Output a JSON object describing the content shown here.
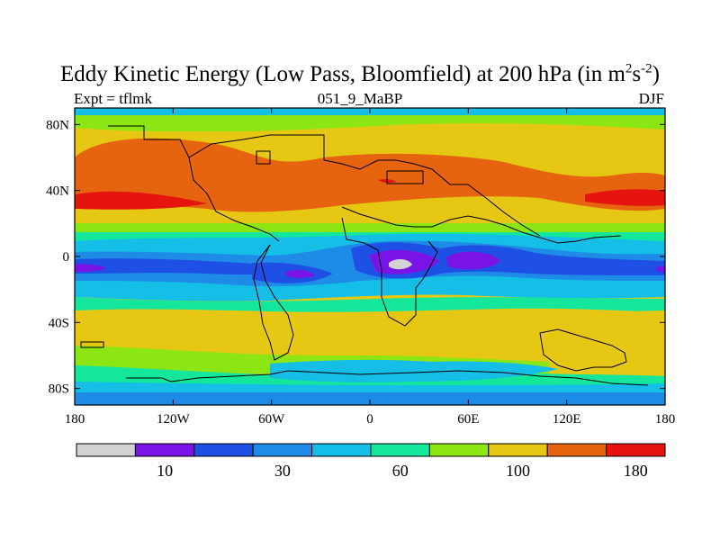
{
  "title": {
    "main": "Eddy Kinetic Energy (Low Pass, Bloomfield) at 200 hPa (in m",
    "sup1": "2",
    "mid": "s",
    "sup2": "-2",
    "end": ")"
  },
  "subtitle": {
    "left": "Expt = tflmk",
    "center": "051_9_MaBP",
    "right": "DJF"
  },
  "map": {
    "lon_range": [
      -180,
      180
    ],
    "lat_range": [
      -90,
      90
    ],
    "x_ticks": [
      {
        "value": -180,
        "label": "180"
      },
      {
        "value": -120,
        "label": "120W"
      },
      {
        "value": -60,
        "label": "60W"
      },
      {
        "value": 0,
        "label": "0"
      },
      {
        "value": 60,
        "label": "60E"
      },
      {
        "value": 120,
        "label": "120E"
      },
      {
        "value": 180,
        "label": "180"
      }
    ],
    "y_ticks": [
      {
        "value": 80,
        "label": "80N"
      },
      {
        "value": 40,
        "label": "40N"
      },
      {
        "value": 0,
        "label": "0"
      },
      {
        "value": -40,
        "label": "40S"
      },
      {
        "value": -80,
        "label": "80S"
      }
    ]
  },
  "colorbar": {
    "colors": [
      "#d2d2d2",
      "#7a14e6",
      "#1e50e6",
      "#1e8ce6",
      "#14bee6",
      "#14e69b",
      "#8ce614",
      "#e6c814",
      "#e6640f",
      "#e6140f"
    ],
    "labels": [
      {
        "index": 1.5,
        "text": "10"
      },
      {
        "index": 3.5,
        "text": "30"
      },
      {
        "index": 5.5,
        "text": "60"
      },
      {
        "index": 7.5,
        "text": "100"
      },
      {
        "index": 9.5,
        "text": "180"
      }
    ]
  }
}
